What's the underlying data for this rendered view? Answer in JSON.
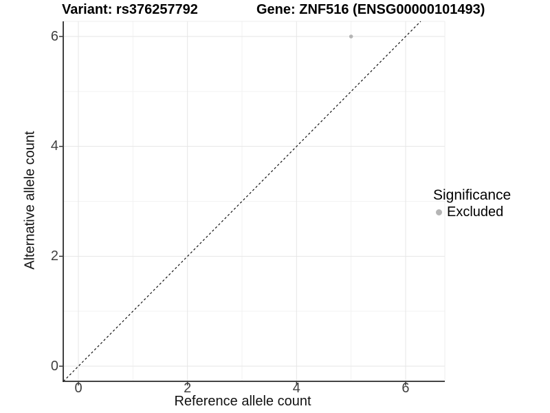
{
  "title": {
    "left": "Variant: rs376257792",
    "right": "Gene: ZNF516 (ENSG00000101493)"
  },
  "axes": {
    "x": {
      "label": "Reference allele count",
      "tick_labels": [
        "0",
        "2",
        "4",
        "6"
      ]
    },
    "y": {
      "label": "Alternative allele count",
      "tick_labels": [
        "0",
        "2",
        "4",
        "6"
      ]
    }
  },
  "legend": {
    "title": "Significance",
    "items": [
      {
        "label": "Excluded",
        "color": "#b5b5b5"
      }
    ]
  },
  "colors": {
    "point": "#b5b5b5",
    "grid_major": "#e6e6e6",
    "grid_minor": "#f2f2f2",
    "panel_edge": "#ececec",
    "axis_line": "#2a2a2a",
    "tick_mark": "#333333",
    "ref_line": "#111111",
    "background": "#ffffff"
  },
  "chart_data": {
    "type": "scatter",
    "title": "Variant: rs376257792    Gene: ZNF516 (ENSG00000101493)",
    "xlabel": "Reference allele count",
    "ylabel": "Alternative allele count",
    "xlim": [
      -0.28,
      6.72
    ],
    "ylim": [
      -0.28,
      6.28
    ],
    "x_ticks": [
      0,
      2,
      4,
      6
    ],
    "y_ticks": [
      0,
      2,
      4,
      6
    ],
    "grid": true,
    "legend_position": "right",
    "series": [
      {
        "name": "Excluded",
        "color": "#b5b5b5",
        "points": [
          {
            "x": 5,
            "y": 6
          }
        ]
      }
    ],
    "reference_line": {
      "type": "identity",
      "slope": 1,
      "intercept": 0,
      "style": "dashed",
      "color": "#111111"
    }
  }
}
